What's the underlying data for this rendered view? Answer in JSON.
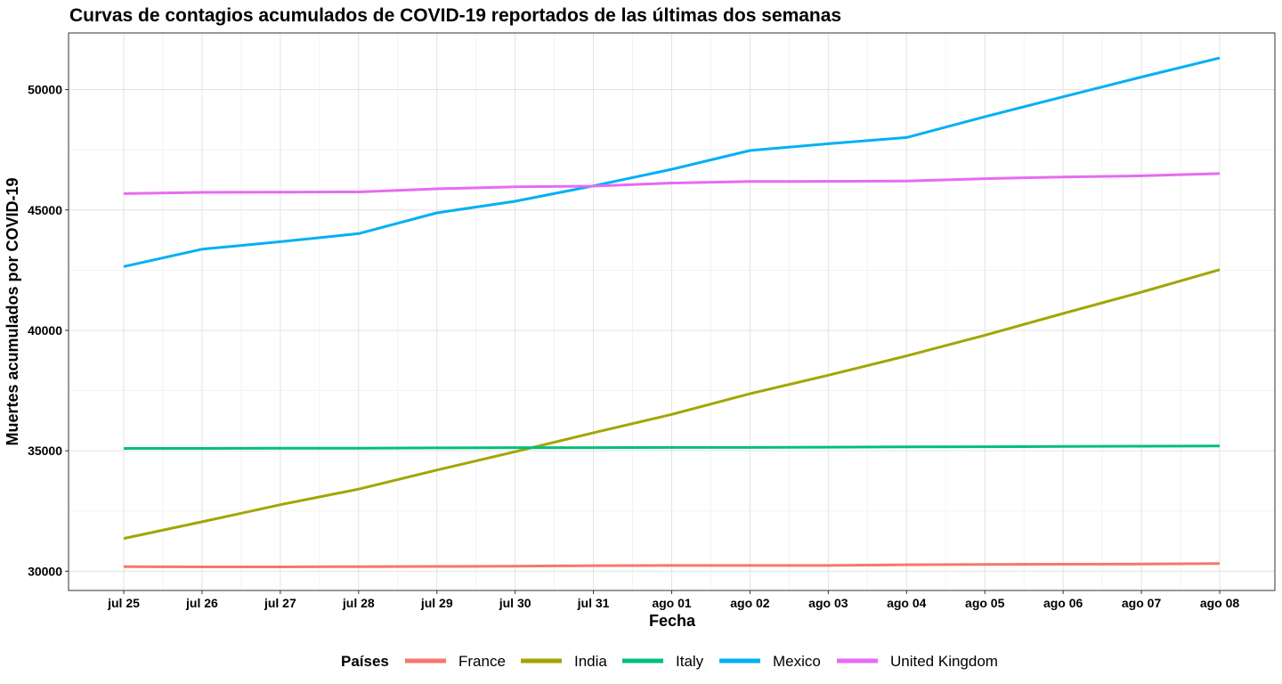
{
  "chart_data": {
    "type": "line",
    "title": "Curvas de contagios acumulados de COVID-19 reportados de las últimas dos semanas",
    "xlabel": "Fecha",
    "ylabel": "Muertes acumulados por COVID-19",
    "legend_title": "Países",
    "legend_position": "bottom",
    "grid": true,
    "categories": [
      "jul 25",
      "jul 26",
      "jul 27",
      "jul 28",
      "jul 29",
      "jul 30",
      "jul 31",
      "ago 01",
      "ago 02",
      "ago 03",
      "ago 04",
      "ago 05",
      "ago 06",
      "ago 07",
      "ago 08"
    ],
    "y_ticks": [
      30000,
      35000,
      40000,
      45000,
      50000
    ],
    "ylim": [
      29200,
      52350
    ],
    "series": [
      {
        "name": "France",
        "color": "#F8766D",
        "values": [
          30190,
          30180,
          30180,
          30190,
          30200,
          30210,
          30230,
          30240,
          30240,
          30240,
          30270,
          30280,
          30290,
          30300,
          30320
        ]
      },
      {
        "name": "India",
        "color": "#A3A500",
        "values": [
          31360,
          32050,
          32760,
          33410,
          34200,
          34960,
          35750,
          36510,
          37370,
          38140,
          38940,
          39800,
          40700,
          41590,
          42520
        ]
      },
      {
        "name": "Italy",
        "color": "#00BF7D",
        "values": [
          35100,
          35100,
          35110,
          35110,
          35120,
          35130,
          35130,
          35140,
          35140,
          35150,
          35160,
          35170,
          35180,
          35190,
          35200
        ]
      },
      {
        "name": "Mexico",
        "color": "#00B0F6",
        "values": [
          42650,
          43370,
          43680,
          44020,
          44880,
          45360,
          46000,
          46690,
          47470,
          47750,
          48010,
          48870,
          49700,
          50520,
          51310
        ]
      },
      {
        "name": "United Kingdom",
        "color": "#E76BF3",
        "values": [
          45680,
          45730,
          45740,
          45750,
          45880,
          45960,
          45990,
          46120,
          46180,
          46190,
          46200,
          46300,
          46370,
          46420,
          46510
        ]
      }
    ]
  }
}
